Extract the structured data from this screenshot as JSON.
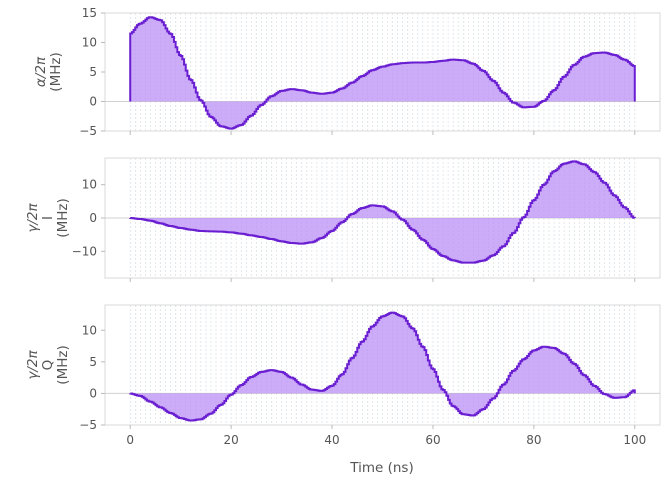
{
  "chart_data": {
    "type": "area",
    "xlabel": "Time (ns)",
    "xlim": [
      -5,
      105
    ],
    "x_ticks": [
      "0",
      "20",
      "40",
      "60",
      "80",
      "100"
    ],
    "grid": "dashed vertical lines every 1 ns",
    "colors": {
      "line": "#6a1ed1",
      "fill": "#b98cf5",
      "grid": "#aab8c2"
    },
    "x": [
      0,
      2,
      4,
      6,
      8,
      10,
      12,
      14,
      16,
      18,
      20,
      22,
      24,
      26,
      28,
      30,
      32,
      34,
      36,
      38,
      40,
      42,
      44,
      46,
      48,
      50,
      52,
      54,
      56,
      58,
      60,
      62,
      64,
      66,
      68,
      70,
      72,
      74,
      76,
      78,
      80,
      82,
      84,
      86,
      88,
      90,
      92,
      94,
      96,
      98,
      100
    ],
    "panels": [
      {
        "ylabel": [
          "α/2π",
          "(MHz)"
        ],
        "ylim": [
          -5,
          15
        ],
        "y_ticks": [
          "15",
          "10",
          "5",
          "0",
          "−5"
        ],
        "y_tick_values": [
          15,
          10,
          5,
          0,
          -5
        ],
        "values": [
          11.5,
          13.2,
          14.3,
          13.8,
          11.5,
          7.8,
          3.7,
          0.2,
          -2.6,
          -4.2,
          -4.6,
          -4.0,
          -2.4,
          -0.6,
          0.9,
          1.8,
          2.1,
          1.9,
          1.5,
          1.3,
          1.5,
          2.2,
          3.2,
          4.3,
          5.3,
          5.9,
          6.3,
          6.5,
          6.6,
          6.6,
          6.7,
          6.9,
          7.1,
          7.0,
          6.4,
          5.2,
          3.5,
          1.5,
          -0.2,
          -1.0,
          -0.9,
          0.1,
          1.9,
          4.2,
          6.2,
          7.6,
          8.2,
          8.3,
          7.9,
          7.1,
          6.0
        ]
      },
      {
        "ylabel": [
          "γ/2π",
          "I",
          "(MHz)"
        ],
        "ylim": [
          -18,
          18
        ],
        "y_ticks": [
          "10",
          "0",
          "−10"
        ],
        "y_tick_values": [
          10,
          0,
          -10
        ],
        "values": [
          0.0,
          -0.3,
          -0.8,
          -1.6,
          -2.4,
          -3.0,
          -3.5,
          -3.9,
          -4.0,
          -4.1,
          -4.3,
          -4.7,
          -5.2,
          -5.7,
          -6.3,
          -7.0,
          -7.5,
          -7.7,
          -7.3,
          -6.0,
          -3.9,
          -1.3,
          1.2,
          3.0,
          3.8,
          3.5,
          2.0,
          -0.5,
          -3.5,
          -6.5,
          -9.3,
          -11.4,
          -12.7,
          -13.4,
          -13.4,
          -12.8,
          -11.2,
          -8.5,
          -4.5,
          0.2,
          5.3,
          10.0,
          14.0,
          16.3,
          17.0,
          16.1,
          13.8,
          10.6,
          6.8,
          3.2,
          0.0
        ]
      },
      {
        "ylabel": [
          "γ/2π",
          "Q",
          "(MHz)"
        ],
        "ylim": [
          -5,
          14
        ],
        "y_ticks": [
          "10",
          "5",
          "0",
          "−5"
        ],
        "y_tick_values": [
          10,
          5,
          0,
          -5
        ],
        "values": [
          0.0,
          -0.4,
          -1.3,
          -2.2,
          -3.1,
          -3.9,
          -4.3,
          -4.1,
          -3.2,
          -1.8,
          -0.2,
          1.3,
          2.6,
          3.4,
          3.7,
          3.4,
          2.5,
          1.4,
          0.6,
          0.4,
          1.2,
          3.0,
          5.6,
          8.2,
          10.6,
          12.2,
          12.8,
          12.2,
          10.3,
          7.4,
          3.9,
          0.6,
          -2.0,
          -3.3,
          -3.5,
          -2.5,
          -0.8,
          1.4,
          3.6,
          5.4,
          6.8,
          7.4,
          7.2,
          6.3,
          4.7,
          2.9,
          1.2,
          -0.1,
          -0.7,
          -0.6,
          0.5
        ]
      }
    ]
  }
}
